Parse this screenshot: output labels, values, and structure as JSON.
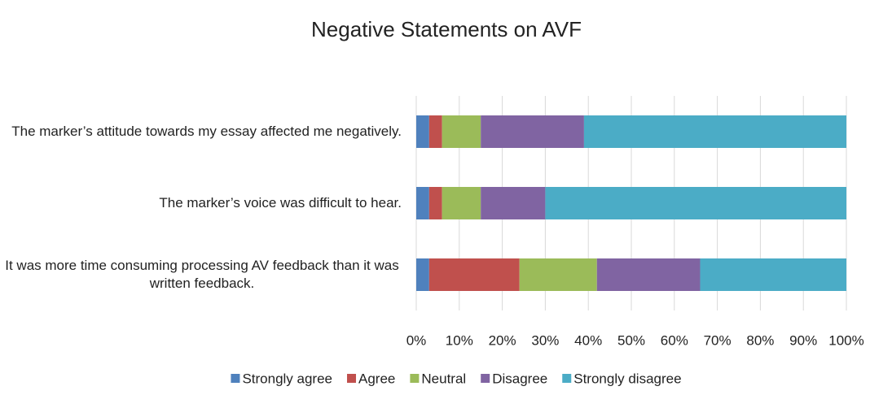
{
  "chart_data": {
    "type": "stacked_bar_horizontal",
    "title": "Negative Statements on AVF",
    "categories": [
      "The marker’s attitude towards my essay affected me negatively.",
      "The marker’s voice was difficult to hear.",
      "It was more time consuming processing AV feedback than it was written feedback."
    ],
    "series": [
      {
        "name": "Strongly agree",
        "color": "#4f81bd",
        "values": [
          3,
          3,
          3
        ]
      },
      {
        "name": "Agree",
        "color": "#c0504d",
        "values": [
          3,
          3,
          21
        ]
      },
      {
        "name": "Neutral",
        "color": "#9bbb59",
        "values": [
          9,
          9,
          18
        ]
      },
      {
        "name": "Disagree",
        "color": "#8064a2",
        "values": [
          24,
          15,
          24
        ]
      },
      {
        "name": "Strongly disagree",
        "color": "#4bacc6",
        "values": [
          61,
          70,
          34
        ]
      }
    ],
    "xlim": [
      0,
      100
    ],
    "xticks": [
      {
        "value": 0,
        "label": "0%"
      },
      {
        "value": 10,
        "label": "10%"
      },
      {
        "value": 20,
        "label": "20%"
      },
      {
        "value": 30,
        "label": "30%"
      },
      {
        "value": 40,
        "label": "40%"
      },
      {
        "value": 50,
        "label": "50%"
      },
      {
        "value": 60,
        "label": "60%"
      },
      {
        "value": 70,
        "label": "70%"
      },
      {
        "value": 80,
        "label": "80%"
      },
      {
        "value": 90,
        "label": "90%"
      },
      {
        "value": 100,
        "label": "100%"
      }
    ],
    "grid": true,
    "legend": "bottom"
  }
}
